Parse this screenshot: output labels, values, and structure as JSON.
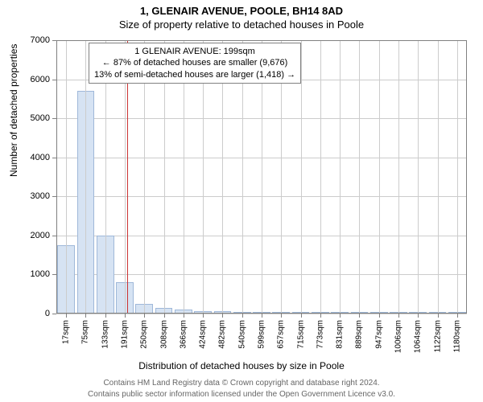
{
  "title": "1, GLENAIR AVENUE, POOLE, BH14 8AD",
  "subtitle": "Size of property relative to detached houses in Poole",
  "ylabel": "Number of detached properties",
  "xlabel": "Distribution of detached houses by size in Poole",
  "footer1": "Contains HM Land Registry data © Crown copyright and database right 2024.",
  "footer2": "Contains public sector information licensed under the Open Government Licence v3.0.",
  "chart": {
    "type": "histogram",
    "background_color": "#ffffff",
    "grid_color": "#cccccc",
    "frame_color": "#808080",
    "bar_fill": "#d6e3f3",
    "bar_stroke": "#9fb8d9",
    "reference_line_color": "#cc3333",
    "ylim": [
      0,
      7000
    ],
    "ytick_step": 1000,
    "yticks": [
      0,
      1000,
      2000,
      3000,
      4000,
      5000,
      6000,
      7000
    ],
    "x_categories": [
      "17sqm",
      "75sqm",
      "133sqm",
      "191sqm",
      "250sqm",
      "308sqm",
      "366sqm",
      "424sqm",
      "482sqm",
      "540sqm",
      "599sqm",
      "657sqm",
      "715sqm",
      "773sqm",
      "831sqm",
      "889sqm",
      "947sqm",
      "1006sqm",
      "1064sqm",
      "1122sqm",
      "1180sqm"
    ],
    "x_values_sqm": [
      17,
      75,
      133,
      191,
      250,
      308,
      366,
      424,
      482,
      540,
      599,
      657,
      715,
      773,
      831,
      889,
      947,
      1006,
      1064,
      1122,
      1180
    ],
    "bar_values": [
      1750,
      5700,
      2000,
      800,
      250,
      150,
      100,
      70,
      60,
      50,
      50,
      50,
      0,
      0,
      0,
      0,
      0,
      0,
      0,
      0,
      0
    ],
    "reference_value_sqm": 199,
    "label_fontsize": 12,
    "tick_fontsize": 11,
    "title_fontsize": 13
  },
  "annotation": {
    "line1": "1 GLENAIR AVENUE: 199sqm",
    "line2": "← 87% of detached houses are smaller (9,676)",
    "line3": "13% of semi-detached houses are larger (1,418) →",
    "border_color": "#808080",
    "background": "#ffffff",
    "fontsize": 11
  }
}
